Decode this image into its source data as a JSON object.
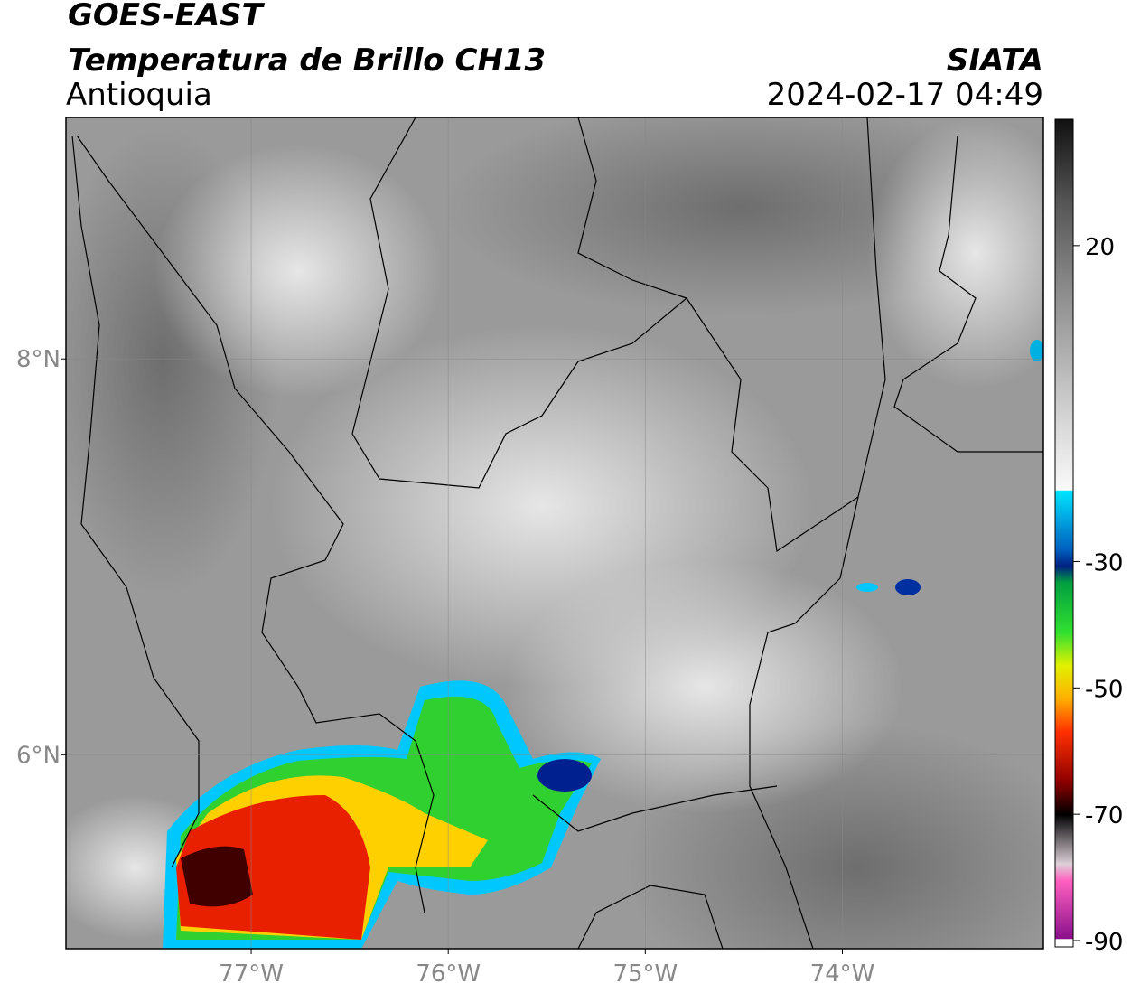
{
  "header": {
    "title": "GOES-EAST",
    "subtitle": "Temperatura de Brillo CH13",
    "region": "Antioquia",
    "source": "SIATA",
    "datetime": "2024-02-17 04:49"
  },
  "map": {
    "xlim": [
      -77.94,
      -72.98
    ],
    "ylim": [
      5.02,
      9.22
    ],
    "xticks": [
      {
        "value": -77,
        "label": "77°W"
      },
      {
        "value": -76,
        "label": "76°W"
      },
      {
        "value": -75,
        "label": "75°W"
      },
      {
        "value": -74,
        "label": "74°W"
      }
    ],
    "yticks": [
      {
        "value": 8,
        "label": "8°N"
      },
      {
        "value": 6,
        "label": "6°N"
      }
    ]
  },
  "colorbar": {
    "lim": [
      -91,
      40
    ],
    "ticks": [
      20,
      -30,
      -50,
      -70,
      -90
    ]
  }
}
